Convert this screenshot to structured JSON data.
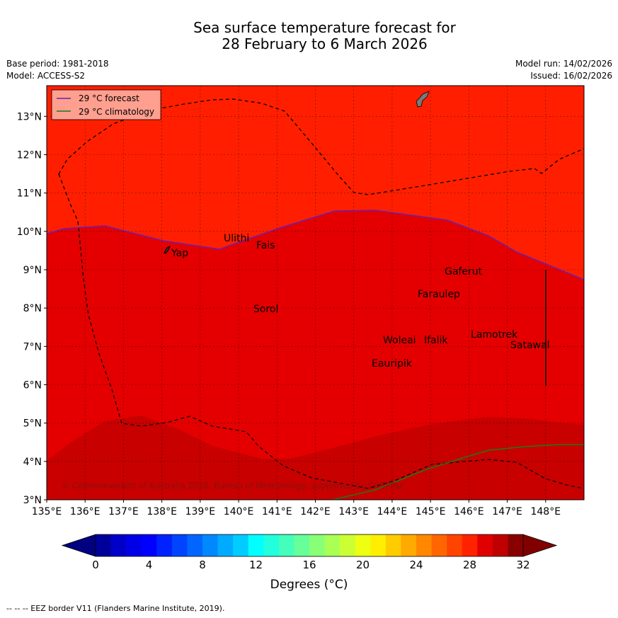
{
  "title_line1": "Sea surface temperature forecast for",
  "title_line2": "28 February to 6 March 2026",
  "base_period": "Base period: 1981-2018",
  "model": "Model: ACCESS-S2",
  "model_run": "Model run: 14/02/2026",
  "issued": "Issued: 16/02/2026",
  "legend": {
    "forecast_label": "29 °C  forecast",
    "climatology_label": "29 °C  climatology",
    "forecast_color": "#6a1fb4",
    "climatology_color": "#1a7a1a"
  },
  "lat_labels": [
    "13°N",
    "12°N",
    "11°N",
    "10°N",
    "9°N",
    "8°N",
    "7°N",
    "6°N",
    "5°N",
    "4°N",
    "3°N"
  ],
  "lon_labels": [
    "135°E",
    "136°E",
    "137°E",
    "138°E",
    "139°E",
    "140°E",
    "141°E",
    "142°E",
    "143°E",
    "144°E",
    "145°E",
    "146°E",
    "147°E",
    "148°E"
  ],
  "places": [
    "Yap",
    "Ulithi",
    "Fais",
    "Sorol",
    "Gaferut",
    "Faraulep",
    "Woleai",
    "Ifalik",
    "Lamotrek",
    "Satawal",
    "Eauripik"
  ],
  "copyright": "© Commonwealth of Australia 2026, Bureau of Meteorology, supported by COSPPac",
  "colorbar": {
    "ticks": [
      "0",
      "4",
      "8",
      "12",
      "16",
      "20",
      "24",
      "28",
      "32"
    ],
    "label": "Degrees (°C)",
    "colors": [
      "#00009a",
      "#0000c8",
      "#0000e6",
      "#0000ff",
      "#0022ff",
      "#0044ff",
      "#0066ff",
      "#0088ff",
      "#00aaff",
      "#00ccff",
      "#00ffff",
      "#22ffdd",
      "#44ffbb",
      "#66ff99",
      "#88ff77",
      "#aaff55",
      "#ccff33",
      "#eeff11",
      "#ffee00",
      "#ffcc00",
      "#ffaa00",
      "#ff8800",
      "#ff6600",
      "#ff4400",
      "#ff2200",
      "#e00000",
      "#c00000",
      "#880000"
    ],
    "low_color": "#000080",
    "high_color": "#800000"
  },
  "footer": "--  --  -- EEZ border V11 (Flanders Marine Institute, 2019)."
}
